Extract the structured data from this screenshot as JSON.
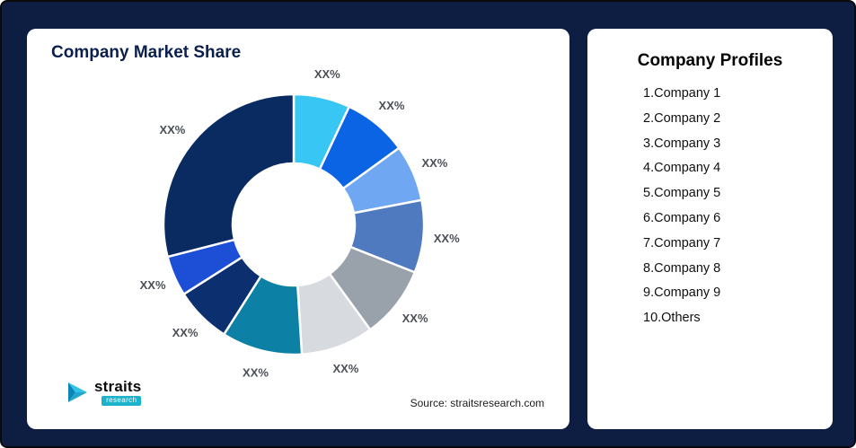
{
  "left_card": {
    "title": "Company Market Share",
    "source": "Source: straitsresearch.com",
    "logo": {
      "brand": "straits",
      "sub": "research"
    }
  },
  "right_card": {
    "title": "Company Profiles",
    "items": [
      "1.Company 1",
      "2.Company 2",
      "3.Company 3",
      "4.Company 4",
      "5.Company 5",
      "6.Company 6",
      "7.Company 7",
      "8.Company 8",
      "9.Company 9",
      "10.Others"
    ]
  },
  "icons": {
    "logo_arrow": "play-arrow-right"
  },
  "chart_data": {
    "type": "pie",
    "donut": true,
    "title": "Company Market Share",
    "start_angle_deg": 0,
    "direction": "clockwise",
    "inner_radius_ratio": 0.47,
    "note": "All slice data labels are shown as placeholder XX%; values below are estimated from arc angles",
    "segments": [
      {
        "name": "segment-1",
        "label": "XX%",
        "value": 7,
        "color": "#38C6F4"
      },
      {
        "name": "segment-2",
        "label": "XX%",
        "value": 8,
        "color": "#0B64E4"
      },
      {
        "name": "segment-3",
        "label": "XX%",
        "value": 7,
        "color": "#6FA7F2"
      },
      {
        "name": "segment-4",
        "label": "XX%",
        "value": 9,
        "color": "#4F7AC0"
      },
      {
        "name": "segment-5",
        "label": "XX%",
        "value": 9,
        "color": "#99A1AB"
      },
      {
        "name": "segment-6",
        "label": "XX%",
        "value": 9,
        "color": "#D7DADE"
      },
      {
        "name": "segment-7",
        "label": "XX%",
        "value": 10,
        "color": "#0C80A5"
      },
      {
        "name": "segment-8",
        "label": "XX%",
        "value": 7,
        "color": "#0C2F6F"
      },
      {
        "name": "segment-9",
        "label": "XX%",
        "value": 5,
        "color": "#1C4FD6"
      },
      {
        "name": "segment-10",
        "label": "XX%",
        "value": 29,
        "color": "#0A2A62"
      }
    ]
  }
}
